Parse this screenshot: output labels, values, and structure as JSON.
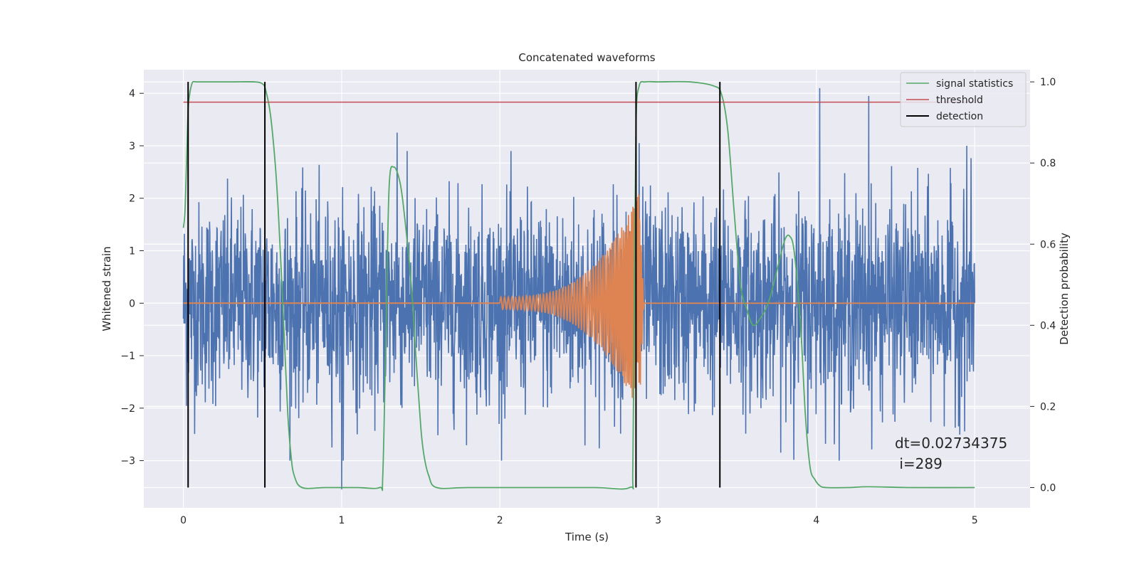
{
  "chart_data": {
    "type": "line",
    "title": "Concatenated waveforms",
    "xlabel": "Time (s)",
    "ylabel": "Whitened strain",
    "ylabel_right": "Detection probability",
    "xlim": [
      -0.25,
      5.35
    ],
    "ylim": [
      -3.9,
      4.45
    ],
    "ylim_right": [
      -0.05,
      1.03
    ],
    "x_ticks": [
      0,
      1,
      2,
      3,
      4,
      5
    ],
    "y_ticks": [
      -3,
      -2,
      -1,
      0,
      1,
      2,
      3,
      4
    ],
    "y_ticks_right": [
      0.0,
      0.2,
      0.4,
      0.6,
      0.8,
      1.0
    ],
    "grid": true,
    "legend_position": "top-right",
    "legend": [
      "signal statistics",
      "threshold",
      "detection"
    ],
    "annotation_lines": [
      "dt=0.02734375",
      " i=289"
    ],
    "colors": {
      "strain": "#4c72b0",
      "chirp": "#dd8452",
      "signal_statistics": "#55a868",
      "threshold": "#c44e52",
      "detection": "#000000",
      "background": "#eaeaf2",
      "grid": "#ffffff"
    },
    "series": [
      {
        "name": "strain",
        "axis": "left",
        "description_x_range": [
          0,
          5
        ],
        "noise_sigma": 0.95,
        "peak_values": [
          {
            "x": 1.0,
            "y": -3.55
          },
          {
            "x": 1.35,
            "y": 3.25
          },
          {
            "x": 2.88,
            "y": 3.05
          },
          {
            "x": 4.02,
            "y": 4.1
          },
          {
            "x": 4.33,
            "y": 3.95
          },
          {
            "x": 4.95,
            "y": 3.0
          }
        ]
      },
      {
        "name": "chirp",
        "axis": "left",
        "x_start": 2.0,
        "x_merger": 2.88,
        "x_end": 5.0,
        "start_amplitude": 0.12,
        "peak_amplitude": 2.1
      },
      {
        "name": "signal statistics",
        "axis": "right",
        "x": [
          0.0,
          0.01,
          0.02,
          0.03,
          0.04,
          0.05,
          0.06,
          0.08,
          0.1,
          0.15,
          0.3,
          0.45,
          0.5,
          0.52,
          0.55,
          0.58,
          0.6,
          0.62,
          0.64,
          0.66,
          0.68,
          0.7,
          0.75,
          0.9,
          1.1,
          1.24,
          1.26,
          1.28,
          1.3,
          1.33,
          1.37,
          1.4,
          1.44,
          1.47,
          1.5,
          1.52,
          1.55,
          1.6,
          1.8,
          2.2,
          2.6,
          2.82,
          2.84,
          2.85,
          2.86,
          2.88,
          2.92,
          3.0,
          3.2,
          3.35,
          3.4,
          3.44,
          3.48,
          3.52,
          3.56,
          3.6,
          3.65,
          3.7,
          3.76,
          3.8,
          3.83,
          3.86,
          3.9,
          3.93,
          3.96,
          3.99,
          4.02,
          4.06,
          4.2,
          4.33,
          4.6,
          5.0
        ],
        "values": [
          0.64,
          0.68,
          0.8,
          0.93,
          0.97,
          0.99,
          1.0,
          1.0,
          1.0,
          1.0,
          1.0,
          1.0,
          0.995,
          0.98,
          0.92,
          0.8,
          0.68,
          0.52,
          0.35,
          0.18,
          0.08,
          0.03,
          0.0,
          0.0,
          0.0,
          0.0,
          0.03,
          0.38,
          0.74,
          0.79,
          0.75,
          0.66,
          0.5,
          0.32,
          0.15,
          0.08,
          0.03,
          0.0,
          0.0,
          0.0,
          0.0,
          0.0,
          0.05,
          0.5,
          0.9,
          0.99,
          1.0,
          1.0,
          1.0,
          0.99,
          0.97,
          0.88,
          0.68,
          0.5,
          0.44,
          0.4,
          0.42,
          0.46,
          0.55,
          0.61,
          0.62,
          0.58,
          0.4,
          0.18,
          0.05,
          0.02,
          0.005,
          0.0,
          0.0,
          0.002,
          0.0,
          0.0
        ]
      },
      {
        "name": "threshold",
        "axis": "right",
        "x": [
          0,
          5
        ],
        "values": [
          0.95,
          0.95
        ]
      },
      {
        "name": "detection",
        "axis": "right",
        "x": [
          0.03,
          0.515,
          2.86,
          3.39
        ],
        "ymin": 0.0,
        "ymax": 1.0
      }
    ]
  }
}
